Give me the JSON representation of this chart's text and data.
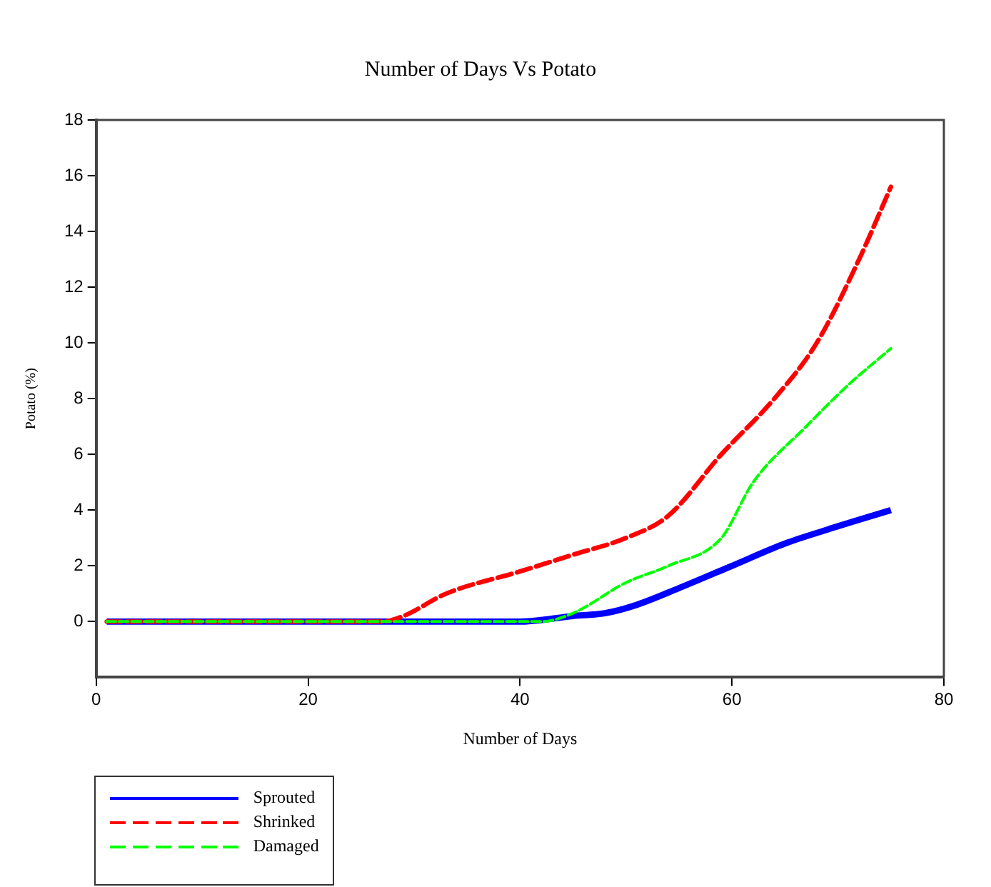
{
  "chart_data": {
    "type": "line",
    "title": "Number of Days Vs Potato",
    "xlabel": "Number of Days",
    "ylabel": "Potato (%)",
    "xlim": [
      0,
      80
    ],
    "xticks": [
      0,
      20,
      40,
      60,
      80
    ],
    "ylim": [
      -2,
      18
    ],
    "yticks": [
      0,
      2,
      4,
      6,
      8,
      10,
      12,
      14,
      16,
      18
    ],
    "grid": false,
    "legend": "bottom left",
    "marker": "none",
    "series": [
      {
        "name": "Sprouted",
        "color": "#0000ff",
        "line_style": "solid",
        "x": [
          1,
          40,
          45,
          48,
          51,
          55,
          60,
          65,
          69,
          75
        ],
        "values": [
          0,
          0,
          0.2,
          0.3,
          0.6,
          1.2,
          2,
          2.8,
          3.3,
          4
        ]
      },
      {
        "name": "Shrinked",
        "color": "#ff0000",
        "line_style": "dashed",
        "x": [
          1,
          27,
          29,
          33,
          40,
          45,
          50,
          54,
          59,
          64,
          68,
          72,
          75
        ],
        "values": [
          0,
          0,
          0.2,
          1,
          1.8,
          2.4,
          3,
          3.8,
          6,
          8,
          10,
          13,
          15.6
        ]
      },
      {
        "name": "Damaged",
        "color": "#00ff00",
        "line_style": "dashed",
        "x": [
          1,
          42,
          45,
          50,
          54,
          59,
          62,
          67,
          71,
          75
        ],
        "values": [
          0,
          0,
          0.3,
          1.4,
          2,
          3,
          5,
          7,
          8.5,
          9.8
        ]
      }
    ]
  }
}
